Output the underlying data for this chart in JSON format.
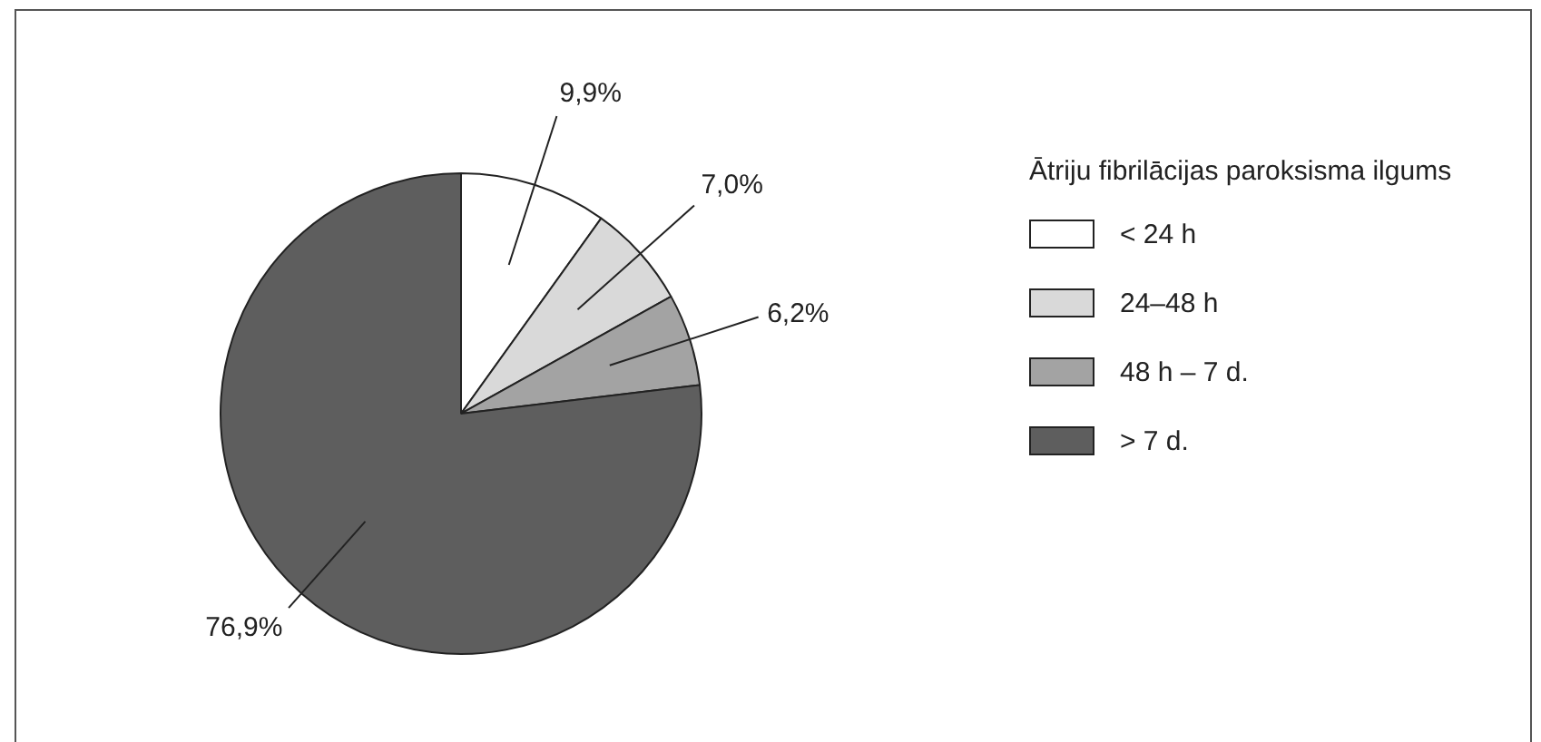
{
  "chart_data": {
    "type": "pie",
    "legend_title": "Ātriju fibrilācijas paroksisma ilgums",
    "categories": [
      "< 24 h",
      "24–48 h",
      "48 h – 7 d.",
      "> 7 d."
    ],
    "values": [
      9.9,
      7.0,
      6.2,
      76.9
    ],
    "value_labels": [
      "9,9%",
      "7,0%",
      "6,2%",
      "76,9%"
    ],
    "colors": [
      "#ffffff",
      "#d9d9d9",
      "#a3a3a3",
      "#5e5e5e"
    ],
    "legend": "right"
  }
}
